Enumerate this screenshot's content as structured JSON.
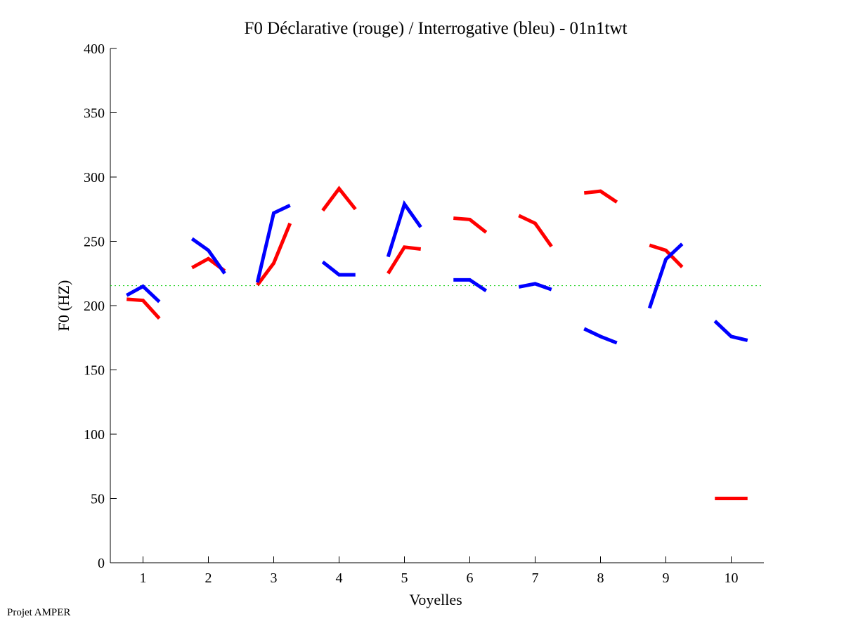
{
  "chart_data": {
    "type": "line",
    "title": "F0 Déclarative (rouge) / Interrogative (bleu) - 01n1twt",
    "xlabel": "Voyelles",
    "ylabel": "F0 (HZ)",
    "xlim": [
      0.5,
      10.5
    ],
    "ylim": [
      0,
      400
    ],
    "xticks": [
      1,
      2,
      3,
      4,
      5,
      6,
      7,
      8,
      9,
      10
    ],
    "yticks": [
      0,
      50,
      100,
      150,
      200,
      250,
      300,
      350,
      400
    ],
    "grid": false,
    "reference_line": {
      "value": 215.5,
      "color": "#00cc00",
      "style": "dotted"
    },
    "segment_offsets": [
      -0.25,
      0,
      0.25
    ],
    "series": [
      {
        "name": "Déclarative",
        "color": "#ff0000",
        "segments": [
          {
            "vowel": 1,
            "values": [
              205,
              204,
              190
            ]
          },
          {
            "vowel": 2,
            "values": [
              229.5,
              236.5,
              227
            ]
          },
          {
            "vowel": 3,
            "values": [
              216,
              233,
              264
            ]
          },
          {
            "vowel": 4,
            "values": [
              274,
              291,
              275
            ]
          },
          {
            "vowel": 5,
            "values": [
              225,
              245.5,
              244
            ]
          },
          {
            "vowel": 6,
            "values": [
              268,
              267,
              257
            ]
          },
          {
            "vowel": 7,
            "values": [
              270,
              264,
              246
            ]
          },
          {
            "vowel": 8,
            "values": [
              287.6,
              289,
              280.5
            ]
          },
          {
            "vowel": 9,
            "values": [
              247,
              243,
              230
            ]
          },
          {
            "vowel": 10,
            "values": [
              50,
              50,
              50
            ]
          }
        ]
      },
      {
        "name": "Interrogative",
        "color": "#0000ff",
        "segments": [
          {
            "vowel": 1,
            "values": [
              208,
              215,
              203
            ]
          },
          {
            "vowel": 2,
            "values": [
              252,
              243,
              225
            ]
          },
          {
            "vowel": 3,
            "values": [
              218,
              272,
              278
            ]
          },
          {
            "vowel": 4,
            "values": [
              234,
              224,
              224
            ]
          },
          {
            "vowel": 5,
            "values": [
              238,
              279,
              261
            ]
          },
          {
            "vowel": 6,
            "values": [
              220,
              220,
              211.5
            ]
          },
          {
            "vowel": 7,
            "values": [
              214.5,
              217,
              212.5
            ]
          },
          {
            "vowel": 8,
            "values": [
              182,
              176,
              171
            ]
          },
          {
            "vowel": 9,
            "values": [
              198,
              236,
              248
            ]
          },
          {
            "vowel": 10,
            "values": [
              188,
              176,
              173
            ]
          }
        ]
      }
    ]
  },
  "footer": "Projet AMPER"
}
